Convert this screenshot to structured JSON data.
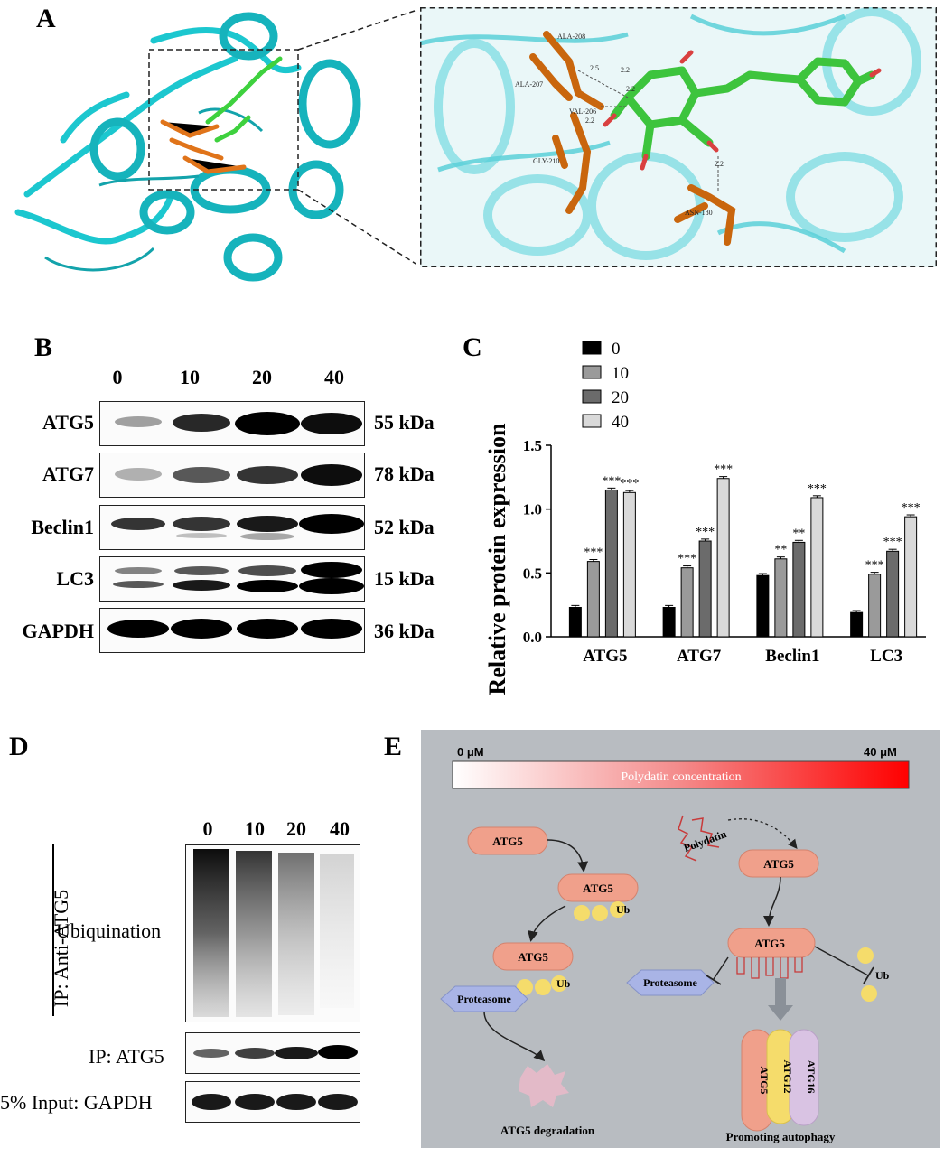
{
  "panels": {
    "A": "A",
    "B": "B",
    "C": "C",
    "D": "D",
    "E": "E"
  },
  "panel_a": {
    "residues": [
      "ALA-208",
      "ALA-207",
      "VAL-206",
      "GLY-210",
      "ASN-180"
    ],
    "distances": [
      "2.5",
      "2.2",
      "2.2",
      "2.2",
      "2.2"
    ]
  },
  "panel_b": {
    "lanes": [
      "0",
      "10",
      "20",
      "40"
    ],
    "rows": [
      {
        "label": "ATG5",
        "kda": "55 kDa"
      },
      {
        "label": "ATG7",
        "kda": "78 kDa"
      },
      {
        "label": "Beclin1",
        "kda": "52 kDa"
      },
      {
        "label": "LC3",
        "kda": "15 kDa"
      },
      {
        "label": "GAPDH",
        "kda": "36 kDa"
      }
    ]
  },
  "chart_data": {
    "type": "bar",
    "ylabel": "Relative protein expression",
    "ylim": [
      0,
      1.5
    ],
    "yticks": [
      "0.0",
      "0.5",
      "1.0",
      "1.5"
    ],
    "categories": [
      "ATG5",
      "ATG7",
      "Beclin1",
      "LC3"
    ],
    "series": [
      {
        "name": "0",
        "color": "#000000",
        "values": [
          0.23,
          0.23,
          0.48,
          0.19
        ],
        "sig": [
          "",
          "",
          "",
          ""
        ]
      },
      {
        "name": "10",
        "color": "#9a9a9a",
        "values": [
          0.59,
          0.54,
          0.61,
          0.49
        ],
        "sig": [
          "***",
          "***",
          "**",
          "***"
        ]
      },
      {
        "name": "20",
        "color": "#6b6b6b",
        "values": [
          1.15,
          0.75,
          0.74,
          0.67
        ],
        "sig": [
          "***",
          "***",
          "**",
          "***"
        ]
      },
      {
        "name": "40",
        "color": "#d9d9d9",
        "values": [
          1.13,
          1.24,
          1.09,
          0.94
        ],
        "sig": [
          "***",
          "***",
          "***",
          "***"
        ]
      }
    ],
    "legend": "top-left"
  },
  "panel_d": {
    "lanes": [
      "0",
      "10",
      "20",
      "40"
    ],
    "ip_label": "IP: Anti-ATG5",
    "ubiquination": "Ubiquination",
    "ip_atg5": "IP: ATG5",
    "input_gapdh": "5% Input: GAPDH"
  },
  "panel_e": {
    "conc_low": "0 μM",
    "conc_high": "40 μM",
    "gradient_label": "Polydatin concentration",
    "atg5": "ATG5",
    "ub": "Ub",
    "proteasome": "Proteasome",
    "polydatin": "Polydatin",
    "degradation": "ATG5 degradation",
    "autophagy": "Promoting autophagy",
    "atg12": "ATG12",
    "atg16": "ATG16",
    "colors": {
      "bg": "#b8bcc1",
      "atg5": "#f0a08b",
      "ub": "#f5dc6b",
      "proteasome": "#a9b4e6",
      "atg16": "#d9c3e3"
    }
  }
}
